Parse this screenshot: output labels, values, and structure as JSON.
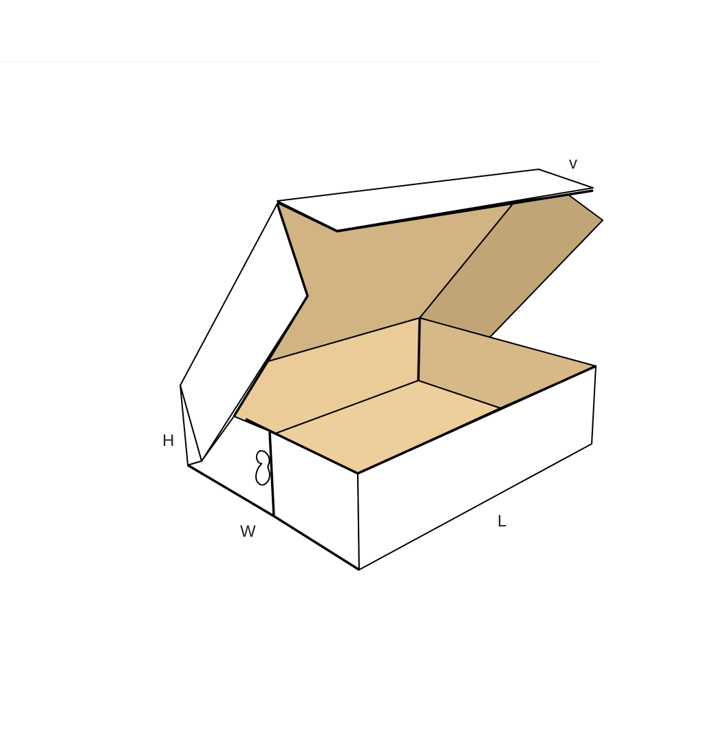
{
  "diagram": {
    "labels": {
      "height": "H",
      "width": "W",
      "length": "L",
      "flap": "v"
    },
    "colors": {
      "outside": "#ffffff",
      "lid_inside": "#d2b383",
      "lid_front_flap": "#c2a577",
      "back_wall": "#ebcc98",
      "right_wall": "#d7b987",
      "floor": "#eccf9c",
      "outline": "#000000"
    }
  }
}
